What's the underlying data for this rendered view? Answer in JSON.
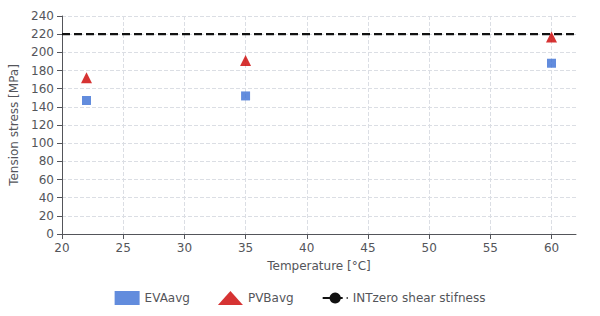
{
  "chart_data": {
    "type": "scatter",
    "xlabel": "Temperature [°C]",
    "ylabel": "Tension stress [MPa]",
    "xlim": [
      20,
      62
    ],
    "ylim": [
      0,
      240
    ],
    "xticks": [
      20,
      25,
      30,
      35,
      40,
      45,
      50,
      55,
      60
    ],
    "yticks": [
      0,
      20,
      40,
      60,
      80,
      100,
      120,
      140,
      160,
      180,
      200,
      220,
      240
    ],
    "grid": true,
    "legend": "bottom",
    "series": [
      {
        "name": "EVAavg",
        "type": "scatter",
        "marker": "square",
        "color": "#3B6FD4",
        "x": [
          22,
          35,
          60
        ],
        "values": [
          147,
          152,
          188
        ]
      },
      {
        "name": "PVBavg",
        "type": "scatter",
        "marker": "triangle",
        "color": "#CC0000",
        "x": [
          22,
          35,
          60
        ],
        "values": [
          172,
          191,
          217
        ]
      },
      {
        "name": "INTzero shear stifness",
        "type": "hline",
        "line_style": "dashed",
        "color": "#111111",
        "values": [
          220
        ]
      }
    ]
  }
}
